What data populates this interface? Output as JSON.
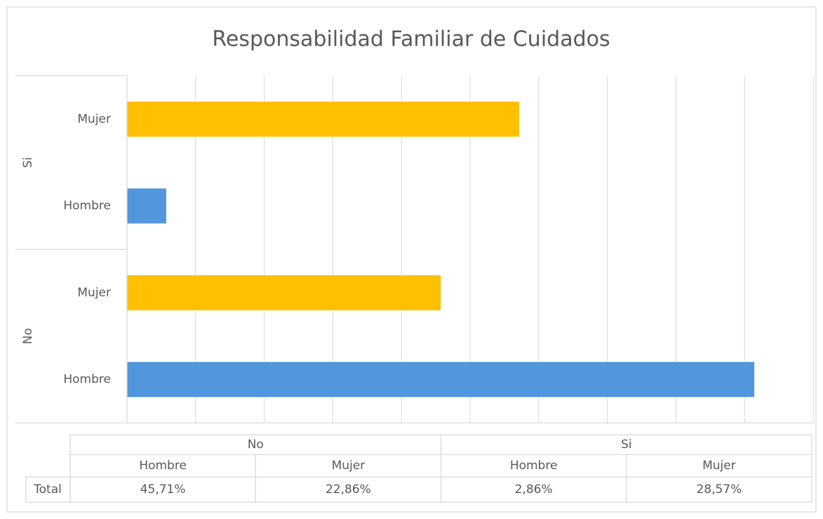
{
  "chart_data": {
    "type": "bar",
    "orientation": "horizontal",
    "title": "Responsabilidad Familiar de Cuidados",
    "groups": [
      {
        "name": "No",
        "categories": [
          "Hombre",
          "Mujer"
        ]
      },
      {
        "name": "Si",
        "categories": [
          "Hombre",
          "Mujer"
        ]
      }
    ],
    "series": [
      {
        "name": "Total",
        "values": [
          45.71,
          22.86,
          2.86,
          28.57
        ],
        "value_labels": [
          "45,71%",
          "22,86%",
          "2,86%",
          "28,57%"
        ],
        "colors": [
          "#5296dc",
          "#ffc000",
          "#5296dc",
          "#ffc000"
        ]
      }
    ],
    "xlim": [
      0,
      50
    ],
    "xticks": [
      0,
      5,
      10,
      15,
      20,
      25,
      30,
      35,
      40,
      45,
      50
    ],
    "grid": true,
    "data_table": true
  }
}
